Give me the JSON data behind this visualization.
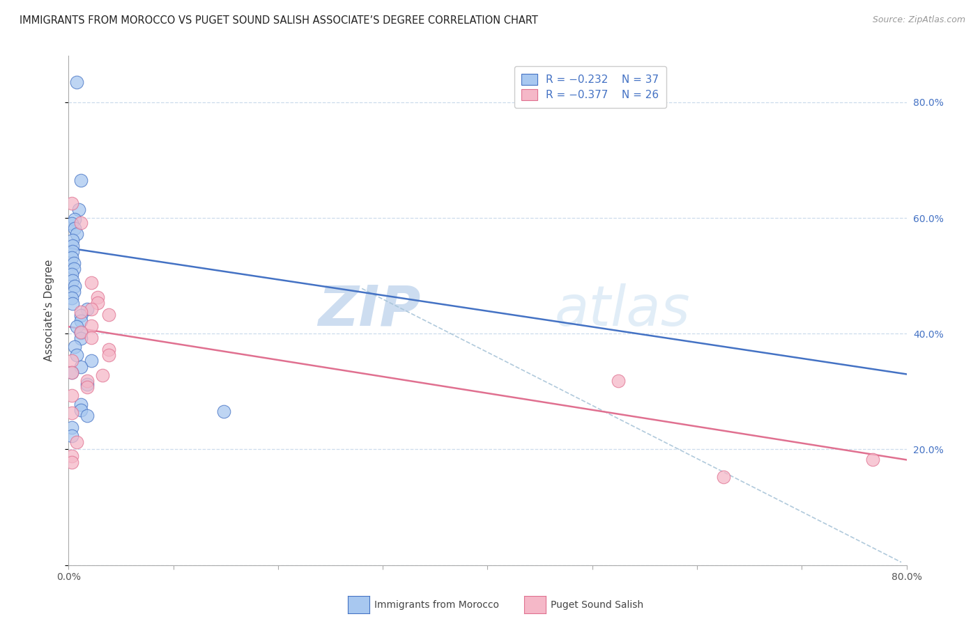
{
  "title": "IMMIGRANTS FROM MOROCCO VS PUGET SOUND SALISH ASSOCIATE’S DEGREE CORRELATION CHART",
  "source": "Source: ZipAtlas.com",
  "ylabel": "Associate's Degree",
  "xmin": 0.0,
  "xmax": 0.8,
  "ymin": 0.0,
  "ymax": 0.88,
  "yticks": [
    0.0,
    0.2,
    0.4,
    0.6,
    0.8
  ],
  "ytick_labels_right": [
    "",
    "20.0%",
    "40.0%",
    "60.0%",
    "80.0%"
  ],
  "xticks": [
    0.0,
    0.1,
    0.2,
    0.3,
    0.4,
    0.5,
    0.6,
    0.7,
    0.8
  ],
  "legend_r1": "R = −0.232",
  "legend_n1": "N = 37",
  "legend_r2": "R = −0.377",
  "legend_n2": "N = 26",
  "color_blue": "#A8C8F0",
  "color_pink": "#F5B8C8",
  "color_blue_line": "#4472C4",
  "color_pink_line": "#E07090",
  "color_dashed": "#A8C4D8",
  "watermark_zip": "ZIP",
  "watermark_atlas": "atlas",
  "blue_points": [
    [
      0.008,
      0.835
    ],
    [
      0.012,
      0.665
    ],
    [
      0.01,
      0.615
    ],
    [
      0.006,
      0.598
    ],
    [
      0.003,
      0.59
    ],
    [
      0.006,
      0.582
    ],
    [
      0.008,
      0.572
    ],
    [
      0.004,
      0.562
    ],
    [
      0.004,
      0.552
    ],
    [
      0.004,
      0.542
    ],
    [
      0.003,
      0.532
    ],
    [
      0.005,
      0.522
    ],
    [
      0.005,
      0.512
    ],
    [
      0.003,
      0.502
    ],
    [
      0.004,
      0.492
    ],
    [
      0.006,
      0.482
    ],
    [
      0.005,
      0.472
    ],
    [
      0.003,
      0.462
    ],
    [
      0.004,
      0.452
    ],
    [
      0.018,
      0.442
    ],
    [
      0.012,
      0.432
    ],
    [
      0.012,
      0.422
    ],
    [
      0.008,
      0.412
    ],
    [
      0.012,
      0.402
    ],
    [
      0.012,
      0.392
    ],
    [
      0.006,
      0.378
    ],
    [
      0.008,
      0.363
    ],
    [
      0.022,
      0.353
    ],
    [
      0.012,
      0.343
    ],
    [
      0.003,
      0.333
    ],
    [
      0.018,
      0.313
    ],
    [
      0.012,
      0.278
    ],
    [
      0.012,
      0.268
    ],
    [
      0.018,
      0.258
    ],
    [
      0.148,
      0.265
    ],
    [
      0.003,
      0.238
    ],
    [
      0.003,
      0.223
    ]
  ],
  "pink_points": [
    [
      0.003,
      0.625
    ],
    [
      0.012,
      0.592
    ],
    [
      0.022,
      0.488
    ],
    [
      0.028,
      0.463
    ],
    [
      0.028,
      0.453
    ],
    [
      0.022,
      0.443
    ],
    [
      0.012,
      0.438
    ],
    [
      0.038,
      0.433
    ],
    [
      0.022,
      0.413
    ],
    [
      0.012,
      0.403
    ],
    [
      0.022,
      0.393
    ],
    [
      0.038,
      0.373
    ],
    [
      0.038,
      0.363
    ],
    [
      0.003,
      0.353
    ],
    [
      0.003,
      0.333
    ],
    [
      0.032,
      0.328
    ],
    [
      0.018,
      0.318
    ],
    [
      0.018,
      0.308
    ],
    [
      0.003,
      0.293
    ],
    [
      0.003,
      0.263
    ],
    [
      0.008,
      0.213
    ],
    [
      0.003,
      0.188
    ],
    [
      0.003,
      0.178
    ],
    [
      0.525,
      0.318
    ],
    [
      0.625,
      0.153
    ],
    [
      0.768,
      0.183
    ]
  ],
  "blue_trendline": [
    [
      0.0,
      0.548
    ],
    [
      0.8,
      0.33
    ]
  ],
  "pink_trendline": [
    [
      0.0,
      0.412
    ],
    [
      0.8,
      0.182
    ]
  ],
  "dashed_trendline": [
    [
      0.28,
      0.478
    ],
    [
      0.795,
      0.005
    ]
  ]
}
